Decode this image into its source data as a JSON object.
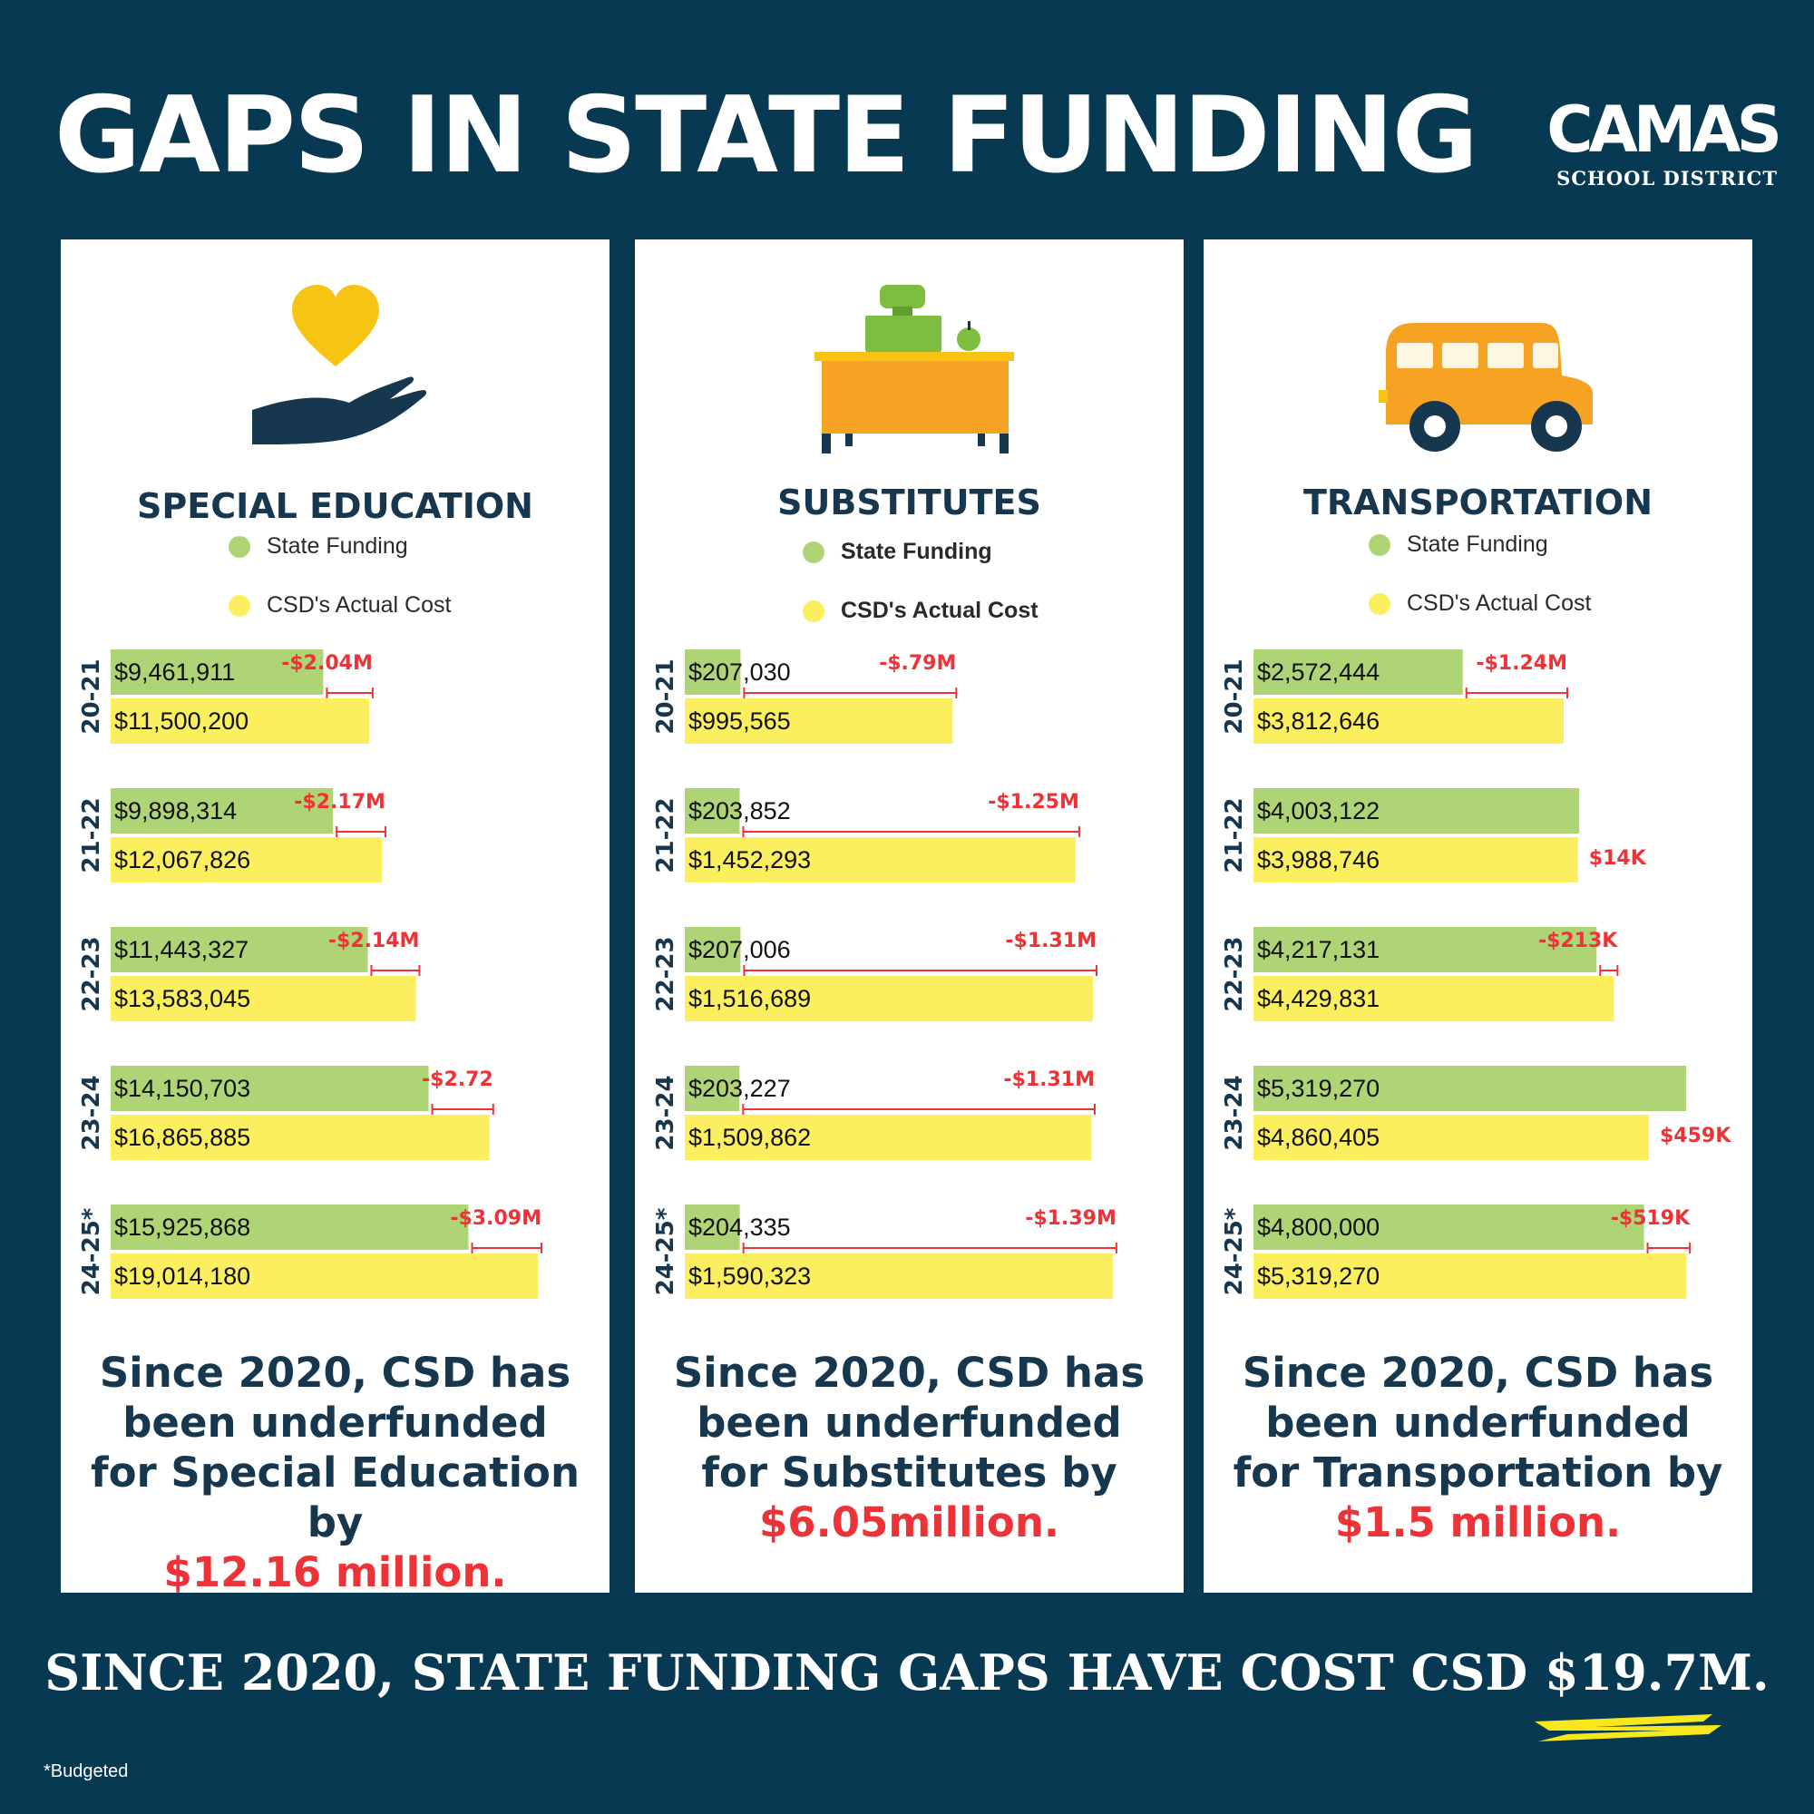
{
  "title": "GAPS IN STATE FUNDING",
  "logo": {
    "main": "CAMAS",
    "sub": "SCHOOL DISTRICT"
  },
  "footer": "SINCE 2020, STATE FUNDING GAPS HAVE COST CSD $19.7M.",
  "footnote": "*Budgeted",
  "colors": {
    "background": "#073a52",
    "state": "#aed476",
    "cost": "#fbee5f",
    "gap": "#ee3338",
    "heading": "#17374f"
  },
  "panels": [
    {
      "title": "SPECIAL EDUCATION",
      "legend": {
        "state": "State Funding",
        "cost": "CSD's Actual Cost"
      },
      "summary": {
        "text": "Since 2020, CSD  has been underfunded for Special Education by",
        "amount": "$12.16 million."
      },
      "icon": "heart-hand-icon"
    },
    {
      "title": "SUBSTITUTES",
      "legend": {
        "state": "State Funding",
        "cost": "CSD's Actual Cost"
      },
      "summary": {
        "text": "Since 2020, CSD has been underfunded for Substitutes by",
        "amount": "$6.05million."
      },
      "icon": "teacher-desk-icon"
    },
    {
      "title": "TRANSPORTATION",
      "legend": {
        "state": "State Funding",
        "cost": "CSD's Actual Cost"
      },
      "summary": {
        "text": "Since 2020, CSD has been underfunded for Transportation by",
        "amount": "$1.5 million."
      },
      "icon": "school-bus-icon"
    }
  ],
  "chart_data": [
    {
      "type": "bar",
      "title": "SPECIAL EDUCATION",
      "categories": [
        "20-21",
        "21-22",
        "22-23",
        "23-24",
        "24-25*"
      ],
      "series": [
        {
          "name": "State Funding",
          "values": [
            9461911,
            9898314,
            11443327,
            14150703,
            15925868
          ],
          "labels": [
            "$9,461,911",
            "$9,898,314",
            "$11,443,327",
            "$14,150,703",
            "$15,925,868"
          ]
        },
        {
          "name": "CSD's Actual Cost",
          "values": [
            11500200,
            12067826,
            13583045,
            16865885,
            19014180
          ],
          "labels": [
            "$11,500,200",
            "$12,067,826",
            "$13,583,045",
            "$16,865,885",
            "$19,014,180"
          ]
        }
      ],
      "gaps": [
        "-$2.04M",
        "-$2.17M",
        "-$2.14M",
        "-$2.72",
        "-$3.09M"
      ],
      "xlim": [
        0,
        21800000
      ]
    },
    {
      "type": "bar",
      "title": "SUBSTITUTES",
      "categories": [
        "20-21",
        "21-22",
        "22-23",
        "23-24",
        "24-25*"
      ],
      "series": [
        {
          "name": "State Funding",
          "values": [
            207030,
            203852,
            207006,
            203227,
            204335
          ],
          "labels": [
            "$207,030",
            "$203,852",
            "$207,006",
            "$203,227",
            "$204,335"
          ]
        },
        {
          "name": "CSD's Actual Cost",
          "values": [
            995565,
            1452293,
            1516689,
            1509862,
            1590323
          ],
          "labels": [
            "$995,565",
            "$1,452,293",
            "$1,516,689",
            "$1,509,862",
            "$1,590,323"
          ]
        }
      ],
      "gaps": [
        "-$.79M",
        "-$1.25M",
        "-$1.31M",
        "-$1.31M",
        "-$1.39M"
      ],
      "xlim": [
        0,
        1820000
      ]
    },
    {
      "type": "bar",
      "title": "TRANSPORTATION",
      "categories": [
        "20-21",
        "21-22",
        "22-23",
        "23-24",
        "24-25*"
      ],
      "series": [
        {
          "name": "State Funding",
          "values": [
            2572444,
            4003122,
            4217131,
            5319270,
            4800000
          ],
          "labels": [
            "$2,572,444",
            "$4,003,122",
            "$4,217,131",
            "$5,319,270",
            "$4,800,000"
          ]
        },
        {
          "name": "CSD's Actual Cost",
          "values": [
            3812646,
            3988746,
            4429831,
            4860405,
            5319270
          ],
          "labels": [
            "$3,812,646",
            "$3,988,746",
            "$4,429,831",
            "$4,860,405",
            "$5,319,270"
          ]
        }
      ],
      "gaps": [
        "-$1.24M",
        "$14K",
        "-$213K",
        "$459K",
        "-$519K"
      ],
      "xlim": [
        0,
        6020000
      ]
    }
  ]
}
